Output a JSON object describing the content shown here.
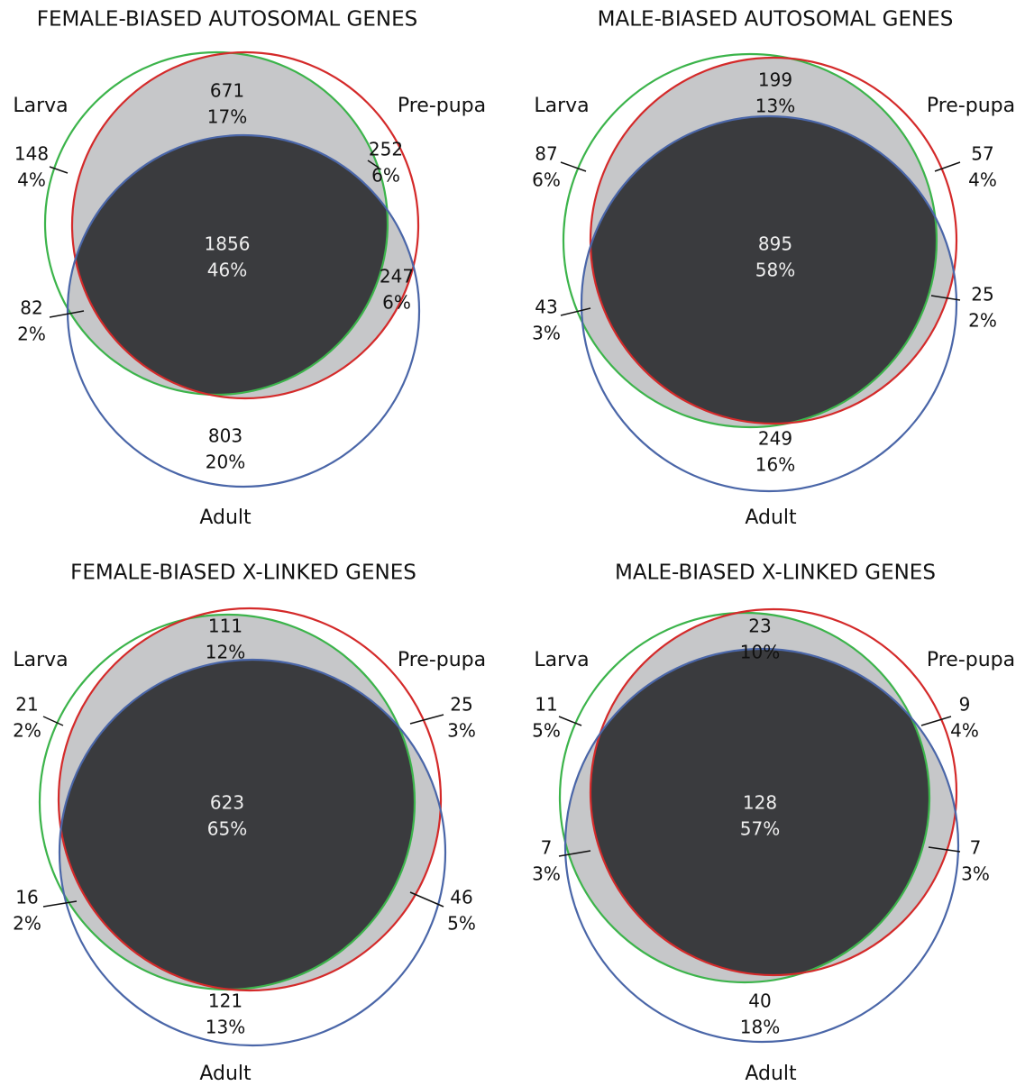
{
  "panels": [
    {
      "title": "FEMALE-BIASED AUTOSOMAL GENES",
      "sets": [
        "Larva",
        "Pre-pupa",
        "Adult"
      ],
      "regions": [
        {
          "count": 671,
          "percent": "17%"
        },
        {
          "count": 148,
          "percent": "4%"
        },
        {
          "count": 252,
          "percent": "6%"
        },
        {
          "count": 1856,
          "percent": "46%"
        },
        {
          "count": 82,
          "percent": "2%"
        },
        {
          "count": 247,
          "percent": "6%"
        },
        {
          "count": 803,
          "percent": "20%"
        }
      ]
    },
    {
      "title": "MALE-BIASED AUTOSOMAL GENES",
      "sets": [
        "Larva",
        "Pre-pupa",
        "Adult"
      ],
      "regions": [
        {
          "count": 199,
          "percent": "13%"
        },
        {
          "count": 87,
          "percent": "6%"
        },
        {
          "count": 57,
          "percent": "4%"
        },
        {
          "count": 895,
          "percent": "58%"
        },
        {
          "count": 43,
          "percent": "3%"
        },
        {
          "count": 25,
          "percent": "2%"
        },
        {
          "count": 249,
          "percent": "16%"
        }
      ]
    },
    {
      "title": "FEMALE-BIASED X-LINKED GENES",
      "sets": [
        "Larva",
        "Pre-pupa",
        "Adult"
      ],
      "regions": [
        {
          "count": 111,
          "percent": "12%"
        },
        {
          "count": 21,
          "percent": "2%"
        },
        {
          "count": 25,
          "percent": "3%"
        },
        {
          "count": 623,
          "percent": "65%"
        },
        {
          "count": 16,
          "percent": "2%"
        },
        {
          "count": 46,
          "percent": "5%"
        },
        {
          "count": 121,
          "percent": "13%"
        }
      ]
    },
    {
      "title": "MALE-BIASED X-LINKED GENES",
      "sets": [
        "Larva",
        "Pre-pupa",
        "Adult"
      ],
      "regions": [
        {
          "count": 23,
          "percent": "10%"
        },
        {
          "count": 11,
          "percent": "5%"
        },
        {
          "count": 9,
          "percent": "4%"
        },
        {
          "count": 128,
          "percent": "57%"
        },
        {
          "count": 7,
          "percent": "3%"
        },
        {
          "count": 7,
          "percent": "3%"
        },
        {
          "count": 40,
          "percent": "18%"
        }
      ]
    }
  ]
}
